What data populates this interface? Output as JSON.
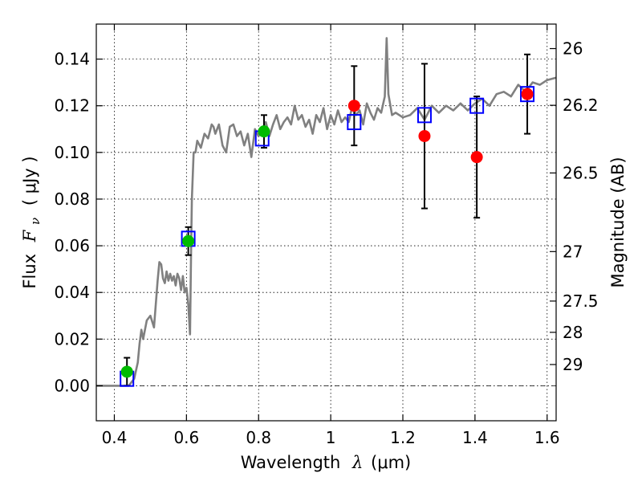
{
  "chart_data": {
    "type": "scatter",
    "xlabel_text": "Wavelength",
    "xlabel_symbol": "λ",
    "xlabel_unit": "(μm)",
    "ylabel_text": "Flux",
    "ylabel_symbol": "F",
    "ylabel_subscript": "ν",
    "ylabel_unit": "( μJy )",
    "y2label": "Magnitude (AB)",
    "xlim": [
      0.35,
      1.625
    ],
    "ylim": [
      -0.015,
      0.155
    ],
    "grid": true,
    "xticks": [
      {
        "value": 0.4,
        "label": "0.4"
      },
      {
        "value": 0.6,
        "label": "0.6"
      },
      {
        "value": 0.8,
        "label": "0.8"
      },
      {
        "value": 1.0,
        "label": "1"
      },
      {
        "value": 1.2,
        "label": "1.2"
      },
      {
        "value": 1.4,
        "label": "1.4"
      },
      {
        "value": 1.6,
        "label": "1.6"
      }
    ],
    "yticks": [
      {
        "value": 0.0,
        "label": "0.00"
      },
      {
        "value": 0.02,
        "label": "0.02"
      },
      {
        "value": 0.04,
        "label": "0.04"
      },
      {
        "value": 0.06,
        "label": "0.06"
      },
      {
        "value": 0.08,
        "label": "0.08"
      },
      {
        "value": 0.1,
        "label": "0.10"
      },
      {
        "value": 0.12,
        "label": "0.12"
      },
      {
        "value": 0.14,
        "label": "0.14"
      }
    ],
    "y2ticks": [
      {
        "flux": 0.1445,
        "label": "26"
      },
      {
        "flux": 0.1202,
        "label": "26.2"
      },
      {
        "flux": 0.0912,
        "label": "26.5"
      },
      {
        "flux": 0.0575,
        "label": "27"
      },
      {
        "flux": 0.0363,
        "label": "27.5"
      },
      {
        "flux": 0.0229,
        "label": "28"
      },
      {
        "flux": 0.0091,
        "label": "29"
      }
    ],
    "series": [
      {
        "kind": "spectrum",
        "color": "#808080",
        "x": [
          0.35,
          0.44,
          0.455,
          0.465,
          0.47,
          0.475,
          0.48,
          0.49,
          0.5,
          0.51,
          0.52,
          0.525,
          0.53,
          0.535,
          0.54,
          0.545,
          0.55,
          0.555,
          0.56,
          0.565,
          0.57,
          0.575,
          0.58,
          0.585,
          0.59,
          0.595,
          0.6,
          0.605,
          0.61,
          0.613,
          0.615,
          0.62,
          0.625,
          0.63,
          0.64,
          0.65,
          0.66,
          0.67,
          0.675,
          0.68,
          0.69,
          0.7,
          0.71,
          0.72,
          0.73,
          0.74,
          0.75,
          0.76,
          0.77,
          0.78,
          0.79,
          0.8,
          0.81,
          0.82,
          0.83,
          0.84,
          0.85,
          0.86,
          0.87,
          0.88,
          0.89,
          0.9,
          0.91,
          0.92,
          0.93,
          0.94,
          0.95,
          0.96,
          0.97,
          0.98,
          0.99,
          1.0,
          1.01,
          1.02,
          1.03,
          1.04,
          1.05,
          1.06,
          1.07,
          1.08,
          1.09,
          1.1,
          1.11,
          1.12,
          1.13,
          1.14,
          1.15,
          1.155,
          1.16,
          1.17,
          1.18,
          1.2,
          1.22,
          1.24,
          1.26,
          1.28,
          1.3,
          1.32,
          1.34,
          1.36,
          1.38,
          1.4,
          1.42,
          1.44,
          1.46,
          1.48,
          1.5,
          1.52,
          1.54,
          1.56,
          1.58,
          1.6,
          1.625
        ],
        "y": [
          0.0,
          0.0,
          0.003,
          0.01,
          0.018,
          0.024,
          0.02,
          0.028,
          0.03,
          0.025,
          0.045,
          0.053,
          0.052,
          0.046,
          0.044,
          0.049,
          0.045,
          0.048,
          0.045,
          0.047,
          0.043,
          0.048,
          0.046,
          0.041,
          0.047,
          0.04,
          0.042,
          0.035,
          0.022,
          0.06,
          0.08,
          0.1,
          0.1,
          0.105,
          0.102,
          0.108,
          0.106,
          0.112,
          0.111,
          0.108,
          0.112,
          0.103,
          0.1,
          0.111,
          0.112,
          0.107,
          0.109,
          0.103,
          0.108,
          0.098,
          0.11,
          0.107,
          0.11,
          0.113,
          0.107,
          0.112,
          0.116,
          0.11,
          0.113,
          0.115,
          0.112,
          0.12,
          0.114,
          0.116,
          0.111,
          0.114,
          0.108,
          0.116,
          0.113,
          0.119,
          0.11,
          0.116,
          0.112,
          0.118,
          0.113,
          0.115,
          0.113,
          0.12,
          0.116,
          0.118,
          0.112,
          0.121,
          0.117,
          0.114,
          0.119,
          0.117,
          0.124,
          0.149,
          0.125,
          0.116,
          0.117,
          0.115,
          0.116,
          0.119,
          0.114,
          0.12,
          0.117,
          0.12,
          0.118,
          0.121,
          0.118,
          0.121,
          0.123,
          0.12,
          0.125,
          0.126,
          0.124,
          0.129,
          0.126,
          0.13,
          0.129,
          0.131,
          0.132
        ]
      },
      {
        "kind": "model",
        "marker": "open-square",
        "color": "#0000ff",
        "x": [
          0.435,
          0.605,
          0.81,
          1.065,
          1.26,
          1.405,
          1.545
        ],
        "y": [
          0.003,
          0.063,
          0.106,
          0.113,
          0.116,
          0.12,
          0.125
        ]
      },
      {
        "kind": "observed",
        "marker": "filled-circle",
        "color": "#00bb00",
        "x": [
          0.435,
          0.605,
          0.815
        ],
        "y": [
          0.006,
          0.062,
          0.109
        ],
        "err_low": [
          0.006,
          0.006,
          0.007
        ],
        "err_high": [
          0.006,
          0.006,
          0.007
        ]
      },
      {
        "kind": "observed",
        "marker": "filled-circle",
        "color": "#ff0000",
        "x": [
          1.065,
          1.26,
          1.405,
          1.545
        ],
        "y": [
          0.12,
          0.107,
          0.098,
          0.125
        ],
        "err_low": [
          0.017,
          0.031,
          0.026,
          0.017
        ],
        "err_high": [
          0.017,
          0.031,
          0.026,
          0.017
        ]
      }
    ]
  }
}
